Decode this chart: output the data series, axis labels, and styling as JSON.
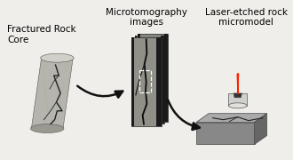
{
  "bg_color": "#f0eeea",
  "label_rock_core": "Fractured Rock\nCore",
  "label_micro_tomo": "Microtomography\nimages",
  "label_laser": "Laser-etched rock\nmicromodel",
  "rock_body_color": "#b8b8b0",
  "rock_top_color": "#d5d5cc",
  "rock_dark": "#333333",
  "tomo_gray": "#888880",
  "tomo_dark": "#1a1a1a",
  "tomo_mid": "#aaaaaa",
  "plate_top_color": "#aaaaaa",
  "plate_front_color": "#999999",
  "plate_side_color": "#777777",
  "laser_body_color": "#d0d0cc",
  "laser_red": "#ff2200",
  "arrow_color": "#111111"
}
